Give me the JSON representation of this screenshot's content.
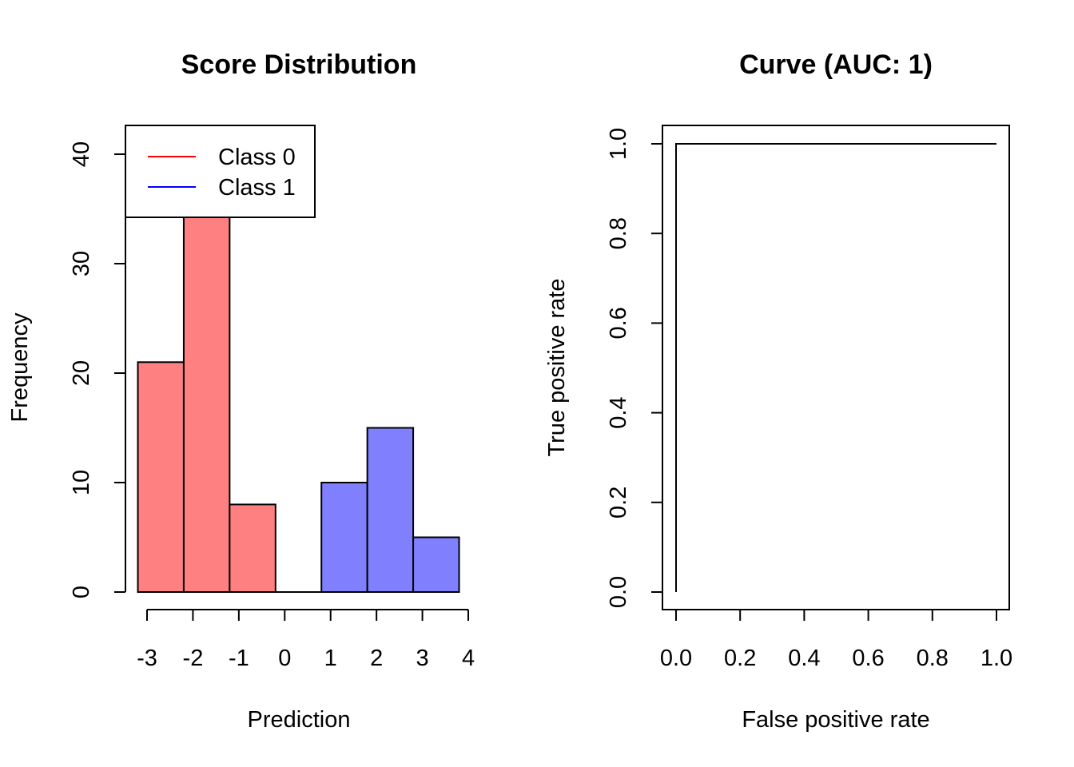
{
  "chart_data": [
    {
      "type": "bar",
      "title": "Score Distribution",
      "xlabel": "Prediction",
      "ylabel": "Frequency",
      "xticks": [
        -3,
        -2,
        -1,
        0,
        1,
        2,
        3,
        4
      ],
      "yticks": [
        0,
        10,
        20,
        30,
        40
      ],
      "xlim": [
        -3.5,
        4.5
      ],
      "ylim": [
        0,
        43
      ],
      "bin_edges": [
        -3.2,
        -2.2,
        -1.2,
        -0.2,
        0.8,
        1.8,
        2.8,
        3.8
      ],
      "series": [
        {
          "name": "Class 0",
          "color": "#ff8080",
          "values": [
            21,
            36,
            8,
            0,
            null,
            null,
            null
          ]
        },
        {
          "name": "Class 1",
          "color": "#8080ff",
          "values": [
            null,
            null,
            null,
            0,
            10,
            15,
            5
          ]
        }
      ],
      "legend": {
        "position": "top-left",
        "entries": [
          {
            "label": "Class 0",
            "color": "#ff0000"
          },
          {
            "label": "Class 1",
            "color": "#0000ff"
          }
        ]
      }
    },
    {
      "type": "line",
      "title": "Curve (AUC: 1)",
      "xlabel": "False positive rate",
      "ylabel": "True positive rate",
      "xticks": [
        "0.0",
        "0.2",
        "0.4",
        "0.6",
        "0.8",
        "1.0"
      ],
      "yticks": [
        "0.0",
        "0.2",
        "0.4",
        "0.6",
        "0.8",
        "1.0"
      ],
      "xlim": [
        0,
        1
      ],
      "ylim": [
        0,
        1
      ],
      "x": [
        0,
        0,
        1
      ],
      "y": [
        0,
        1,
        1
      ]
    }
  ]
}
